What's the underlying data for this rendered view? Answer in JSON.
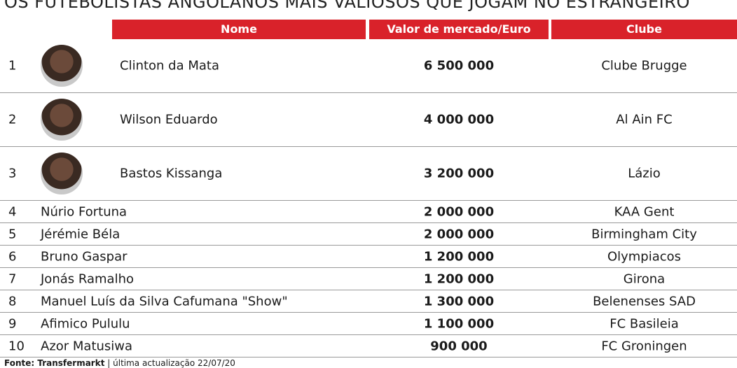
{
  "title": "OS FUTEBOLISTAS ANGOLANOS MAIS VALIOSOS QUE JOGAM NO ESTRANGEIRO",
  "table": {
    "headers": [
      "Nome",
      "Valor de mercado/Euro",
      "Clube"
    ],
    "rows": [
      [
        1,
        "Clinton da Mata",
        "6 500 000",
        "Clube Brugge"
      ],
      [
        2,
        "Wilson Eduardo",
        "4 000 000",
        "Al Ain FC"
      ],
      [
        3,
        "Bastos Kissanga",
        "3 200 000",
        "Lázio"
      ],
      [
        4,
        "Núrio Fortuna",
        "2 000 000",
        "KAA Gent"
      ],
      [
        5,
        "Jérémie Béla",
        "2 000 000",
        "Birmingham City"
      ],
      [
        6,
        "Bruno Gaspar",
        "1 200 000",
        "Olympiacos"
      ],
      [
        7,
        "Jonás Ramalho",
        "1 200 000",
        "Girona"
      ],
      [
        8,
        "Manuel Luís da Silva Cafumana \"Show\"",
        "1 300 000",
        "Belenenses SAD"
      ],
      [
        9,
        "Afimico Pululu",
        "1 100 000",
        "FC Basileia"
      ],
      [
        10,
        "Azor Matusiwa",
        "900 000",
        "FC Groningen"
      ]
    ]
  },
  "footer": {
    "source": "Fonte: Transfermarkt",
    "update": "| última actualização 22/07/20"
  }
}
